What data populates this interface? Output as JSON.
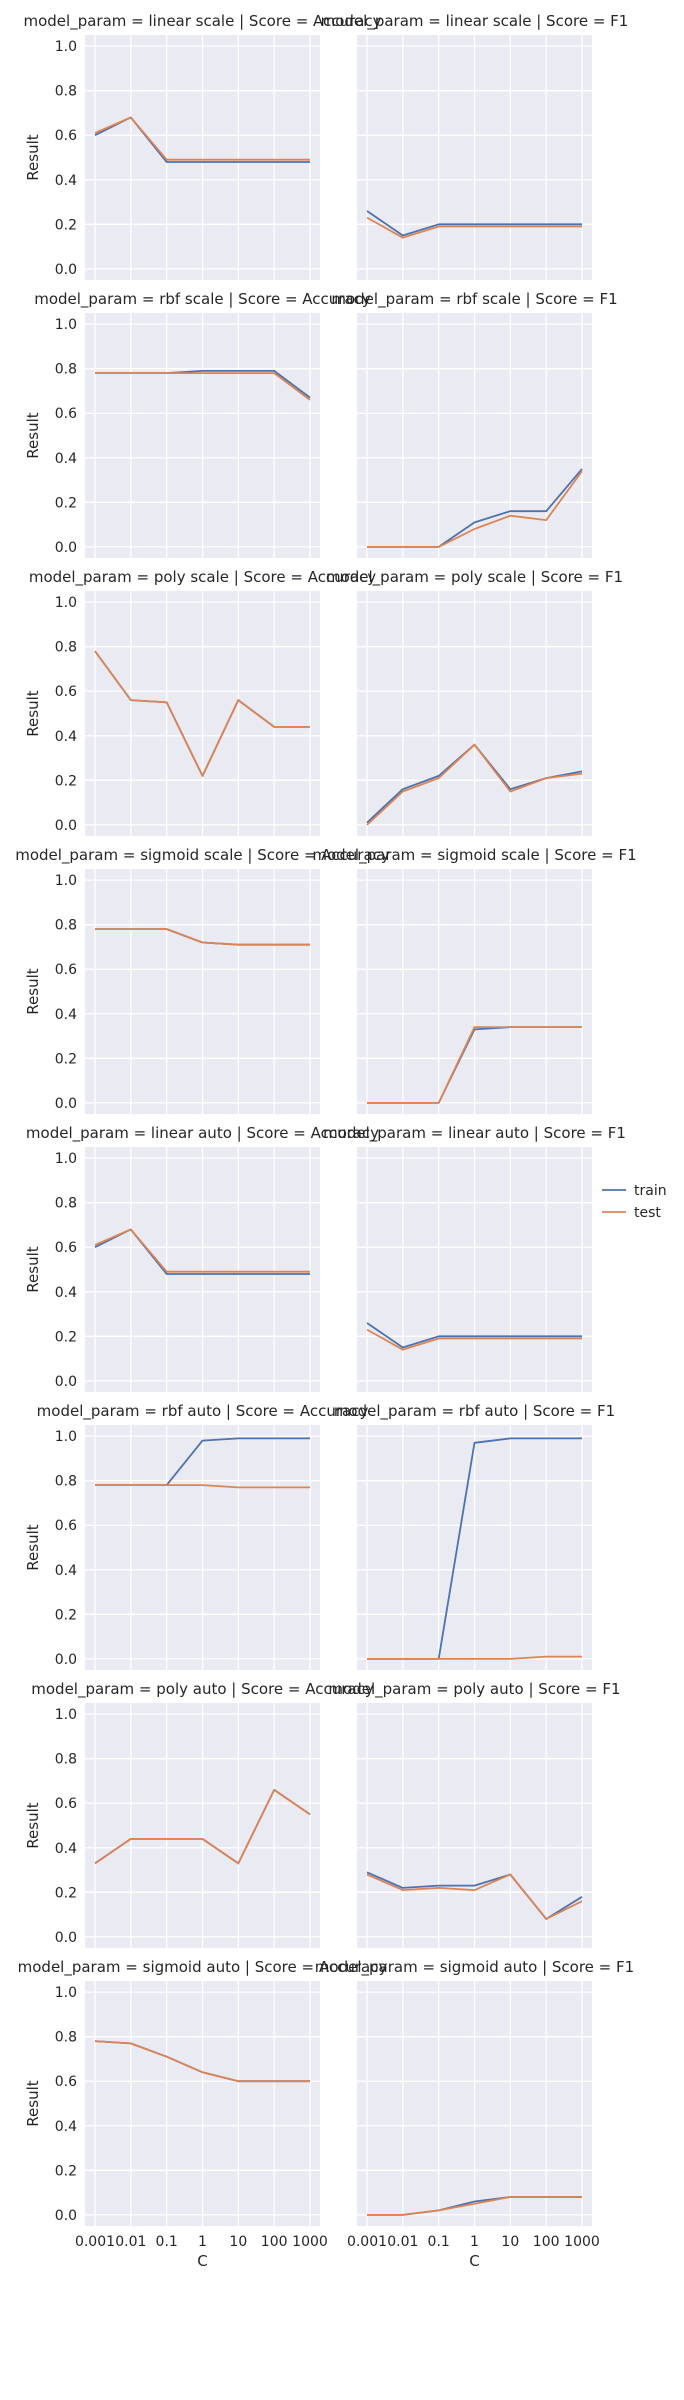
{
  "chart_data": {
    "type": "line",
    "xlabel": "C",
    "ylabel": "Result",
    "x_scale": "log",
    "x": [
      0.001,
      0.01,
      0.1,
      1,
      10,
      100,
      1000
    ],
    "xtick_labels": [
      "0.001",
      "0.01",
      "0.1",
      "1",
      "10",
      "100",
      "1000"
    ],
    "ylim": [
      -0.05,
      1.05
    ],
    "yticks": [
      "0.0",
      "0.2",
      "0.4",
      "0.6",
      "0.8",
      "1.0"
    ],
    "grid": true,
    "legend_position": "right",
    "series_names": [
      "train",
      "test"
    ],
    "colors": {
      "train": "#4c72b0",
      "test": "#dd8452",
      "background": "#eaeaf2",
      "grid": "#ffffff"
    },
    "facets": [
      {
        "title": "model_param = linear scale | Score = Accuracy",
        "train": [
          0.6,
          0.68,
          0.48,
          0.48,
          0.48,
          0.48,
          0.48
        ],
        "test": [
          0.61,
          0.68,
          0.49,
          0.49,
          0.49,
          0.49,
          0.49
        ]
      },
      {
        "title": "model_param = linear scale | Score = F1",
        "train": [
          0.26,
          0.15,
          0.2,
          0.2,
          0.2,
          0.2,
          0.2
        ],
        "test": [
          0.23,
          0.14,
          0.19,
          0.19,
          0.19,
          0.19,
          0.19
        ]
      },
      {
        "title": "model_param = rbf scale | Score = Accuracy",
        "train": [
          0.78,
          0.78,
          0.78,
          0.79,
          0.79,
          0.79,
          0.67
        ],
        "test": [
          0.78,
          0.78,
          0.78,
          0.78,
          0.78,
          0.78,
          0.66
        ]
      },
      {
        "title": "model_param = rbf scale | Score = F1",
        "train": [
          0.0,
          0.0,
          0.0,
          0.11,
          0.16,
          0.16,
          0.35
        ],
        "test": [
          0.0,
          0.0,
          0.0,
          0.08,
          0.14,
          0.12,
          0.34
        ]
      },
      {
        "title": "model_param = poly scale | Score = Accuracy",
        "train": [
          0.78,
          0.56,
          0.55,
          0.22,
          0.56,
          0.44,
          0.44
        ],
        "test": [
          0.78,
          0.56,
          0.55,
          0.22,
          0.56,
          0.44,
          0.44
        ]
      },
      {
        "title": "model_param = poly scale | Score = F1",
        "train": [
          0.01,
          0.16,
          0.22,
          0.36,
          0.16,
          0.21,
          0.24
        ],
        "test": [
          0.0,
          0.15,
          0.21,
          0.36,
          0.15,
          0.21,
          0.23
        ]
      },
      {
        "title": "model_param = sigmoid scale | Score = Accuracy",
        "train": [
          0.78,
          0.78,
          0.78,
          0.72,
          0.71,
          0.71,
          0.71
        ],
        "test": [
          0.78,
          0.78,
          0.78,
          0.72,
          0.71,
          0.71,
          0.71
        ]
      },
      {
        "title": "model_param = sigmoid scale | Score = F1",
        "train": [
          0.0,
          0.0,
          0.0,
          0.33,
          0.34,
          0.34,
          0.34
        ],
        "test": [
          0.0,
          0.0,
          0.0,
          0.34,
          0.34,
          0.34,
          0.34
        ]
      },
      {
        "title": "model_param = linear auto | Score = Accuracy",
        "train": [
          0.6,
          0.68,
          0.48,
          0.48,
          0.48,
          0.48,
          0.48
        ],
        "test": [
          0.61,
          0.68,
          0.49,
          0.49,
          0.49,
          0.49,
          0.49
        ]
      },
      {
        "title": "model_param = linear auto | Score = F1",
        "train": [
          0.26,
          0.15,
          0.2,
          0.2,
          0.2,
          0.2,
          0.2
        ],
        "test": [
          0.23,
          0.14,
          0.19,
          0.19,
          0.19,
          0.19,
          0.19
        ]
      },
      {
        "title": "model_param = rbf auto | Score = Accuracy",
        "train": [
          0.78,
          0.78,
          0.78,
          0.98,
          0.99,
          0.99,
          0.99
        ],
        "test": [
          0.78,
          0.78,
          0.78,
          0.78,
          0.77,
          0.77,
          0.77
        ]
      },
      {
        "title": "model_param = rbf auto | Score = F1",
        "train": [
          0.0,
          0.0,
          0.0,
          0.97,
          0.99,
          0.99,
          0.99
        ],
        "test": [
          0.0,
          0.0,
          0.0,
          0.0,
          0.0,
          0.01,
          0.01
        ]
      },
      {
        "title": "model_param = poly auto | Score = Accuracy",
        "train": [
          0.33,
          0.44,
          0.44,
          0.44,
          0.33,
          0.66,
          0.55
        ],
        "test": [
          0.33,
          0.44,
          0.44,
          0.44,
          0.33,
          0.66,
          0.55
        ]
      },
      {
        "title": "model_param = poly auto | Score = F1",
        "train": [
          0.29,
          0.22,
          0.23,
          0.23,
          0.28,
          0.08,
          0.18
        ],
        "test": [
          0.28,
          0.21,
          0.22,
          0.21,
          0.28,
          0.08,
          0.16
        ]
      },
      {
        "title": "model_param = sigmoid auto | Score = Accuracy",
        "train": [
          0.78,
          0.77,
          0.71,
          0.64,
          0.6,
          0.6,
          0.6
        ],
        "test": [
          0.78,
          0.77,
          0.71,
          0.64,
          0.6,
          0.6,
          0.6
        ]
      },
      {
        "title": "model_param = sigmoid auto | Score = F1",
        "train": [
          0.0,
          0.0,
          0.02,
          0.06,
          0.08,
          0.08,
          0.08
        ],
        "test": [
          0.0,
          0.0,
          0.02,
          0.05,
          0.08,
          0.08,
          0.08
        ]
      }
    ]
  }
}
